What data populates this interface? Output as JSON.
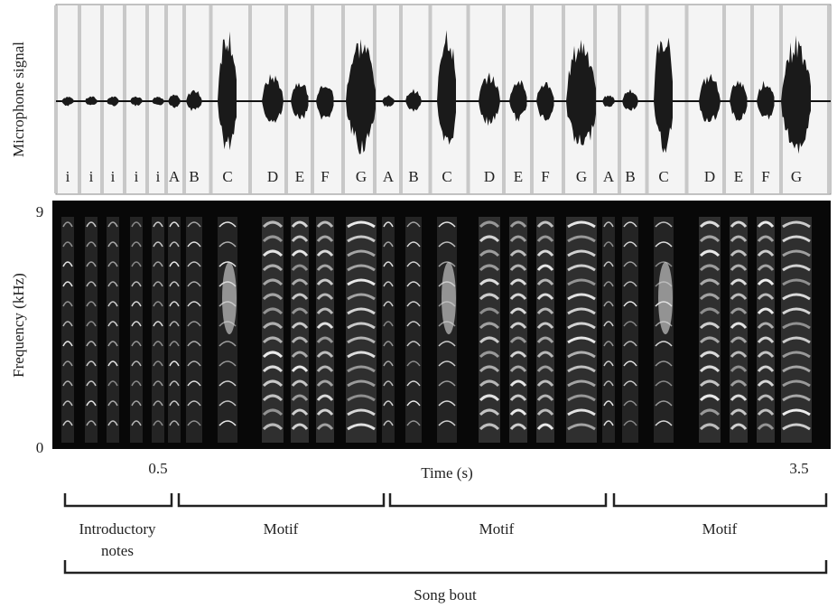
{
  "panel_top": {
    "y_label": "Microphone signal",
    "syllables": [
      "i",
      "i",
      "i",
      "i",
      "i",
      "A",
      "B",
      "C",
      "D",
      "E",
      "F",
      "G",
      "A",
      "B",
      "C",
      "D",
      "E",
      "F",
      "G",
      "A",
      "B",
      "C",
      "D",
      "E",
      "F",
      "G"
    ]
  },
  "panel_spectrogram": {
    "y_label": "Frequency (kHz)",
    "y_ticks": [
      "9",
      "0"
    ]
  },
  "x_axis": {
    "ticks": [
      "0.5",
      "3.5"
    ],
    "label": "Time (s)"
  },
  "groups": [
    {
      "lines": [
        "Introductory",
        "notes"
      ]
    },
    {
      "lines": [
        "Motif"
      ]
    },
    {
      "lines": [
        "Motif"
      ]
    },
    {
      "lines": [
        "Motif"
      ]
    }
  ],
  "bout": {
    "label": "Song bout"
  }
}
